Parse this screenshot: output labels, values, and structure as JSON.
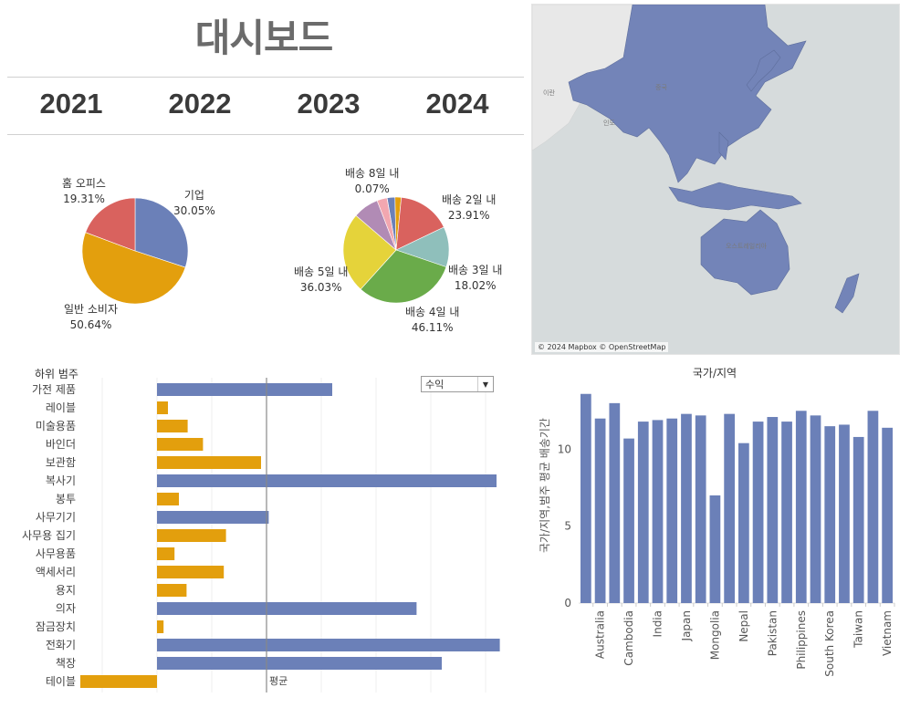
{
  "header": {
    "title": "대시보드",
    "years": [
      "2021",
      "2022",
      "2023",
      "2024"
    ]
  },
  "map": {
    "credit": "© 2024 Mapbox © OpenStreetMap",
    "places": [
      "이란",
      "중국",
      "인도",
      "오스트레일리아"
    ],
    "colors": {
      "land": "#7384b8",
      "water": "#d6dbdc",
      "other_land": "#e8e8e8"
    }
  },
  "chart_data": [
    {
      "type": "pie",
      "name": "segment-pie",
      "slices": [
        {
          "label": "기업",
          "percent": "30.05%",
          "value": 30.05,
          "color": "#6b80b8"
        },
        {
          "label": "일반 소비자",
          "percent": "50.64%",
          "value": 50.64,
          "color": "#e39f0d"
        },
        {
          "label": "홈 오피스",
          "percent": "19.31%",
          "value": 19.31,
          "color": "#d9625e"
        }
      ]
    },
    {
      "type": "pie",
      "name": "shipping-pie",
      "slices": [
        {
          "label": "배송 8일 내",
          "percent": "0.07%",
          "value": 0.07,
          "color": "#f2c6c6"
        },
        {
          "label": "",
          "percent": "",
          "value": 3.5,
          "color": "#6b80b8"
        },
        {
          "label": "",
          "percent": "",
          "value": 2.8,
          "color": "#e39f0d"
        },
        {
          "label": "배송 2일 내",
          "percent": "23.91%",
          "value": 23.91,
          "color": "#d9625e"
        },
        {
          "label": "배송 3일 내",
          "percent": "18.02%",
          "value": 18.02,
          "color": "#8fbfbb"
        },
        {
          "label": "배송 4일 내",
          "percent": "46.11%",
          "value": 46.11,
          "color": "#6aab4a"
        },
        {
          "label": "배송 5일 내",
          "percent": "36.03%",
          "value": 36.03,
          "color": "#e5d33a"
        },
        {
          "label": "",
          "percent": "",
          "value": 11.5,
          "color": "#b18bb5"
        },
        {
          "label": "",
          "percent": "",
          "value": 4.5,
          "color": "#f2a7b0"
        }
      ]
    },
    {
      "type": "bar",
      "name": "subcategory-profit",
      "header": "하위 범주",
      "reference_label": "평균",
      "reference_value": 100,
      "xlim": [
        -70,
        320
      ],
      "dropdown": {
        "selected": "수익"
      },
      "positive_color": "#6b80b8",
      "negative_color": "#e39f0d",
      "categories": [
        "가전 제품",
        "레이블",
        "미술용품",
        "바인더",
        "보관함",
        "복사기",
        "봉투",
        "사무기기",
        "사무용 집기",
        "사무용품",
        "액세서리",
        "용지",
        "의자",
        "잠금장치",
        "전화기",
        "책장",
        "테이블"
      ],
      "values": [
        160,
        10,
        28,
        42,
        95,
        310,
        20,
        102,
        63,
        16,
        61,
        27,
        237,
        6,
        313,
        260,
        -78
      ],
      "colors": [
        "#6b80b8",
        "#e39f0d",
        "#e39f0d",
        "#e39f0d",
        "#e39f0d",
        "#6b80b8",
        "#e39f0d",
        "#6b80b8",
        "#e39f0d",
        "#e39f0d",
        "#e39f0d",
        "#e39f0d",
        "#6b80b8",
        "#e39f0d",
        "#6b80b8",
        "#6b80b8",
        "#e39f0d"
      ]
    },
    {
      "type": "bar",
      "name": "country-shipping",
      "title": "국가/지역",
      "ylabel": "국가/지역,범주 평균 배송기간",
      "ylim": [
        0,
        14
      ],
      "yticks": [
        0,
        5,
        10
      ],
      "color": "#6b80b8",
      "categories": [
        "",
        "Australia",
        "",
        "Cambodia",
        "",
        "India",
        "",
        "Japan",
        "",
        "Mongolia",
        "",
        "Nepal",
        "",
        "Pakistan",
        "",
        "Philippines",
        "",
        "South Korea",
        "",
        "Taiwan",
        "",
        "Vietnam"
      ],
      "values": [
        13.6,
        12.0,
        13.0,
        10.7,
        11.8,
        11.9,
        12.0,
        12.3,
        12.2,
        7.0,
        12.3,
        10.4,
        11.8,
        12.1,
        11.8,
        12.5,
        12.2,
        11.5,
        11.6,
        10.8,
        12.5,
        11.4
      ]
    }
  ]
}
